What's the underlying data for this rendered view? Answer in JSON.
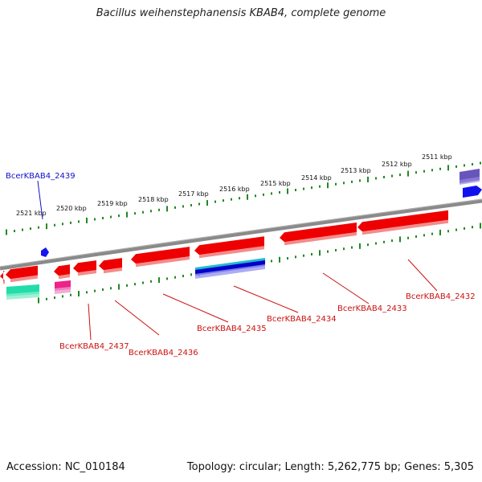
{
  "title": "Bacillus weihenstephanensis KBAB4, complete genome",
  "footer": {
    "accession": "Accession: NC_010184",
    "topology": "Topology: circular; Length: 5,262,775 bp; Genes: 5,305"
  },
  "scale_labels": [
    "2521 kbp",
    "2520 kbp",
    "2519 kbp",
    "2518 kbp",
    "2517 kbp",
    "2516 kbp",
    "2515 kbp",
    "2514 kbp",
    "2513 kbp",
    "2512 kbp",
    "2511 kbp"
  ],
  "gene_labels": [
    {
      "name": "BcerKBAB4_2439",
      "color": "#1010cc"
    },
    {
      "name": "BcerKBAB4_2437",
      "color": "#cc1111"
    },
    {
      "name": "BcerKBAB4_2436",
      "color": "#cc1111"
    },
    {
      "name": "BcerKBAB4_2435",
      "color": "#cc1111"
    },
    {
      "name": "BcerKBAB4_2434",
      "color": "#cc1111"
    },
    {
      "name": "BcerKBAB4_2433",
      "color": "#cc1111"
    },
    {
      "name": "BcerKBAB4_2432",
      "color": "#cc1111"
    }
  ],
  "colors": {
    "gene_red": "#ee0000",
    "gene_blue": "#0000ee",
    "backbone": "#808080",
    "tick_green": "#228822",
    "rna_teal": "#22ddaa",
    "rna_pink": "#ee2288",
    "rna_purple": "#6655bb",
    "rna_cyan": "#22bbcc"
  }
}
